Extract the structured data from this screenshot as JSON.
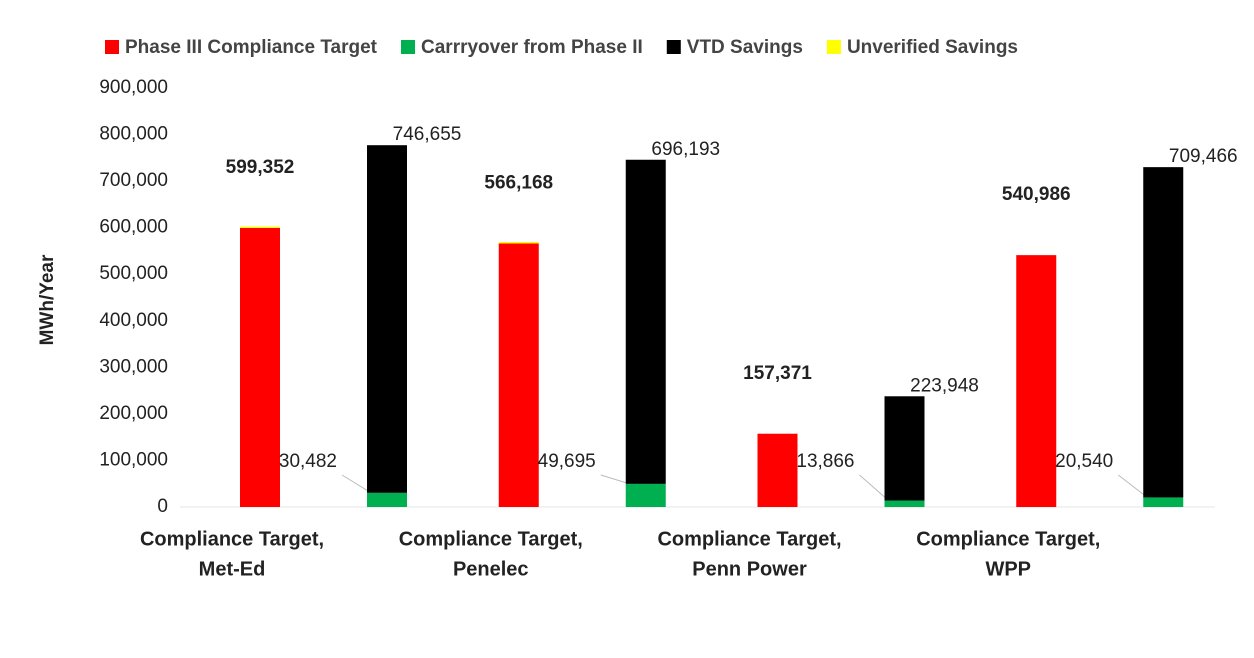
{
  "chart_data": {
    "type": "stacked_bar",
    "y_label": "MWh/Year",
    "categories": [
      [
        "Compliance Target,",
        "Met-Ed"
      ],
      [
        "Compliance Target,",
        "Penelec"
      ],
      [
        "Compliance Target,",
        "Penn Power"
      ],
      [
        "Compliance Target,",
        "WPP"
      ]
    ],
    "series": [
      {
        "name": "Phase III Compliance Target",
        "color": "#ff0000",
        "stack": 0,
        "values": [
          599352,
          566168,
          157371,
          540986
        ],
        "value_labels": [
          "599,352",
          "566,168",
          "157,371",
          "540,986"
        ]
      },
      {
        "name": "Carrryover from Phase II",
        "color": "#00b050",
        "stack": 1,
        "values": [
          30482,
          49695,
          13866,
          20540
        ],
        "value_labels": [
          "30,482",
          "49,695",
          "13,866",
          "20,540"
        ]
      },
      {
        "name": "VTD Savings",
        "color": "#000000",
        "stack": 1,
        "values": [
          746655,
          696193,
          223948,
          709466
        ],
        "value_labels": [
          "746,655",
          "696,193",
          "223,948",
          "709,466"
        ]
      },
      {
        "name": "Unverified Savings",
        "color": "#ffff00",
        "stack": 0,
        "values": [
          3000,
          3000,
          0,
          0
        ]
      }
    ],
    "ylim": [
      0,
      900000
    ],
    "yticks": [
      0,
      {
        "value": 100000,
        "label": "100,000"
      },
      {
        "value": 200000,
        "label": "200,000"
      },
      {
        "value": 300000,
        "label": "300,000"
      },
      {
        "value": 400000,
        "label": "400,000"
      },
      {
        "value": 500000,
        "label": "500,000"
      },
      {
        "value": 600000,
        "label": "600,000"
      },
      {
        "value": 700000,
        "label": "700,000"
      },
      {
        "value": 800000,
        "label": "800,000"
      },
      {
        "value": 900000,
        "label": "900,000"
      }
    ]
  }
}
